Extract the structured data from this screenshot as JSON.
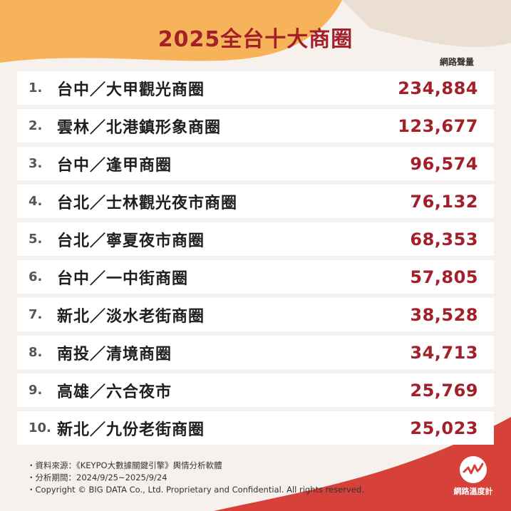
{
  "title": "2025全台十大商圈",
  "column_label": "網路聲量",
  "chart_data": {
    "type": "table",
    "title": "2025全台十大商圈",
    "value_label": "網路聲量",
    "rows": [
      {
        "rank": "1.",
        "name": "台中／大甲觀光商圈",
        "value": "234,884"
      },
      {
        "rank": "2.",
        "name": "雲林／北港鎮形象商圈",
        "value": "123,677"
      },
      {
        "rank": "3.",
        "name": "台中／逢甲商圈",
        "value": "96,574"
      },
      {
        "rank": "4.",
        "name": "台北／士林觀光夜市商圈",
        "value": "76,132"
      },
      {
        "rank": "5.",
        "name": "台北／寧夏夜市商圈",
        "value": "68,353"
      },
      {
        "rank": "6.",
        "name": "台中／一中街商圈",
        "value": "57,805"
      },
      {
        "rank": "7.",
        "name": "新北／淡水老街商圈",
        "value": "38,528"
      },
      {
        "rank": "8.",
        "name": "南投／清境商圈",
        "value": "34,713"
      },
      {
        "rank": "9.",
        "name": "高雄／六合夜市",
        "value": "25,769"
      },
      {
        "rank": "10.",
        "name": "新北／九份老街商圈",
        "value": "25,023"
      }
    ]
  },
  "notes": [
    "資料來源：《KEYPO大數據關鍵引擎》輿情分析軟體",
    "分析期間：2024/9/25~2025/9/24",
    "Copyright © BIG DATA Co., Ltd. Proprietary and Confidential. All rights reserved."
  ],
  "logo": {
    "text": "網路溫度計",
    "icon": "wave-chart-icon"
  },
  "colors": {
    "accent": "#a3202a",
    "orange": "#f6b35a",
    "red": "#d6413a",
    "background": "#f6f1ec"
  }
}
